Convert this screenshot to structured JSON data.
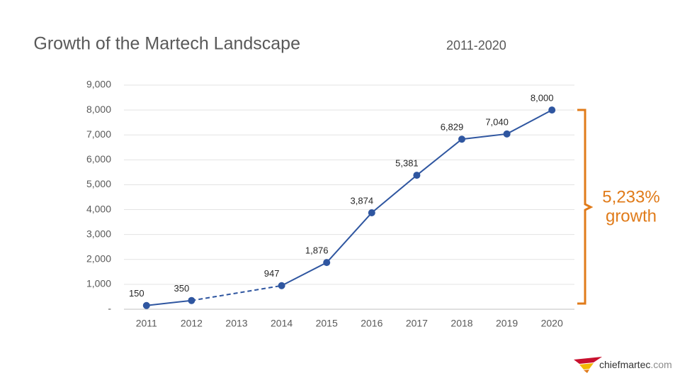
{
  "chart_data": {
    "type": "line",
    "title": "Growth of the Martech Landscape",
    "subtitle": "2011-2020",
    "categories": [
      "2011",
      "2012",
      "2013",
      "2014",
      "2015",
      "2016",
      "2017",
      "2018",
      "2019",
      "2020"
    ],
    "values": [
      150,
      350,
      null,
      947,
      1876,
      3874,
      5381,
      6829,
      7040,
      8000
    ],
    "value_labels": [
      "150",
      "350",
      null,
      "947",
      "1,876",
      "3,874",
      "5,381",
      "6,829",
      "7,040",
      "8,000"
    ],
    "color": "#2F56A0",
    "ylim": [
      0,
      9000
    ],
    "yticks": [
      {
        "value": 0,
        "label": "-"
      },
      {
        "value": 1000,
        "label": "1,000"
      },
      {
        "value": 2000,
        "label": "2,000"
      },
      {
        "value": 3000,
        "label": "3,000"
      },
      {
        "value": 4000,
        "label": "4,000"
      },
      {
        "value": 5000,
        "label": "5,000"
      },
      {
        "value": 6000,
        "label": "6,000"
      },
      {
        "value": 7000,
        "label": "7,000"
      },
      {
        "value": 8000,
        "label": "8,000"
      },
      {
        "value": 9000,
        "label": "9,000"
      }
    ],
    "grid": true,
    "annotation": [
      "5,233%",
      "growth"
    ]
  },
  "logo": {
    "name": "chiefmartec",
    "domain": ".com"
  }
}
